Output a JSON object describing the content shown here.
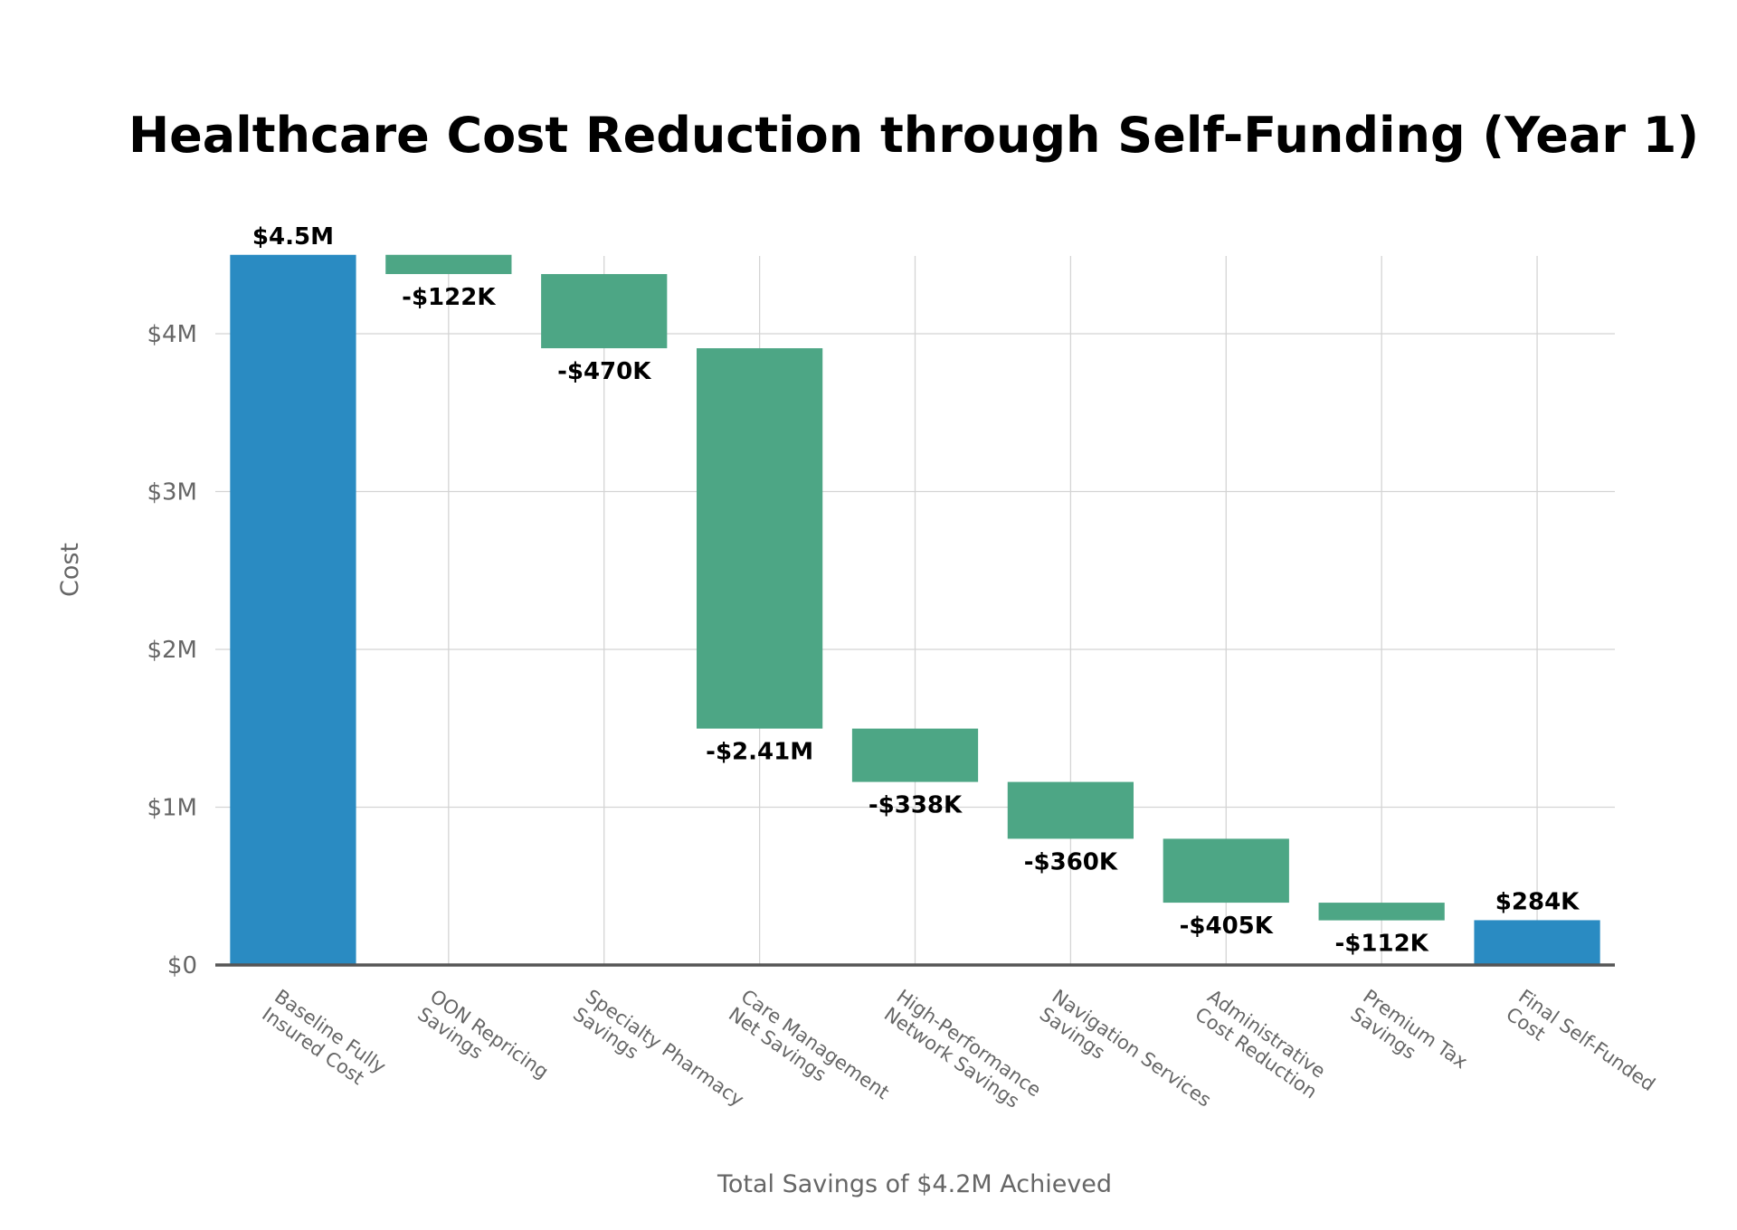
{
  "chart_data": {
    "type": "waterfall",
    "title": "Healthcare Cost Reduction through Self-Funding (Year 1)",
    "xlabel": "Total Savings of $4.2M Achieved",
    "ylabel": "Cost",
    "ylim": [
      0,
      4500000
    ],
    "yticks": [
      {
        "value": 0,
        "label": "$0"
      },
      {
        "value": 1000000,
        "label": "$1M"
      },
      {
        "value": 2000000,
        "label": "$2M"
      },
      {
        "value": 3000000,
        "label": "$3M"
      },
      {
        "value": 4000000,
        "label": "$4M"
      }
    ],
    "grid": true,
    "colors": {
      "total": "#2a8bc2",
      "decrease": "#4da685",
      "axis": "#555555",
      "grid": "#d4d4d4"
    },
    "bars": [
      {
        "category": [
          "Baseline Fully",
          "Insured Cost"
        ],
        "kind": "total",
        "value": 4500000,
        "label": "$4.5M"
      },
      {
        "category": [
          "OON Repricing",
          "Savings"
        ],
        "kind": "decrease",
        "value": -122000,
        "label": "-$122K"
      },
      {
        "category": [
          "Specialty Pharmacy",
          "Savings"
        ],
        "kind": "decrease",
        "value": -470000,
        "label": "-$470K"
      },
      {
        "category": [
          "Care Management",
          "Net Savings"
        ],
        "kind": "decrease",
        "value": -2410000,
        "label": "-$2.41M"
      },
      {
        "category": [
          "High-Performance",
          "Network Savings"
        ],
        "kind": "decrease",
        "value": -338000,
        "label": "-$338K"
      },
      {
        "category": [
          "Navigation Services",
          "Savings"
        ],
        "kind": "decrease",
        "value": -360000,
        "label": "-$360K"
      },
      {
        "category": [
          "Administrative",
          "Cost Reduction"
        ],
        "kind": "decrease",
        "value": -405000,
        "label": "-$405K"
      },
      {
        "category": [
          "Premium Tax",
          "Savings"
        ],
        "kind": "decrease",
        "value": -112000,
        "label": "-$112K"
      },
      {
        "category": [
          "Final Self-Funded",
          "Cost"
        ],
        "kind": "total",
        "value": 284000,
        "label": "$284K"
      }
    ]
  }
}
